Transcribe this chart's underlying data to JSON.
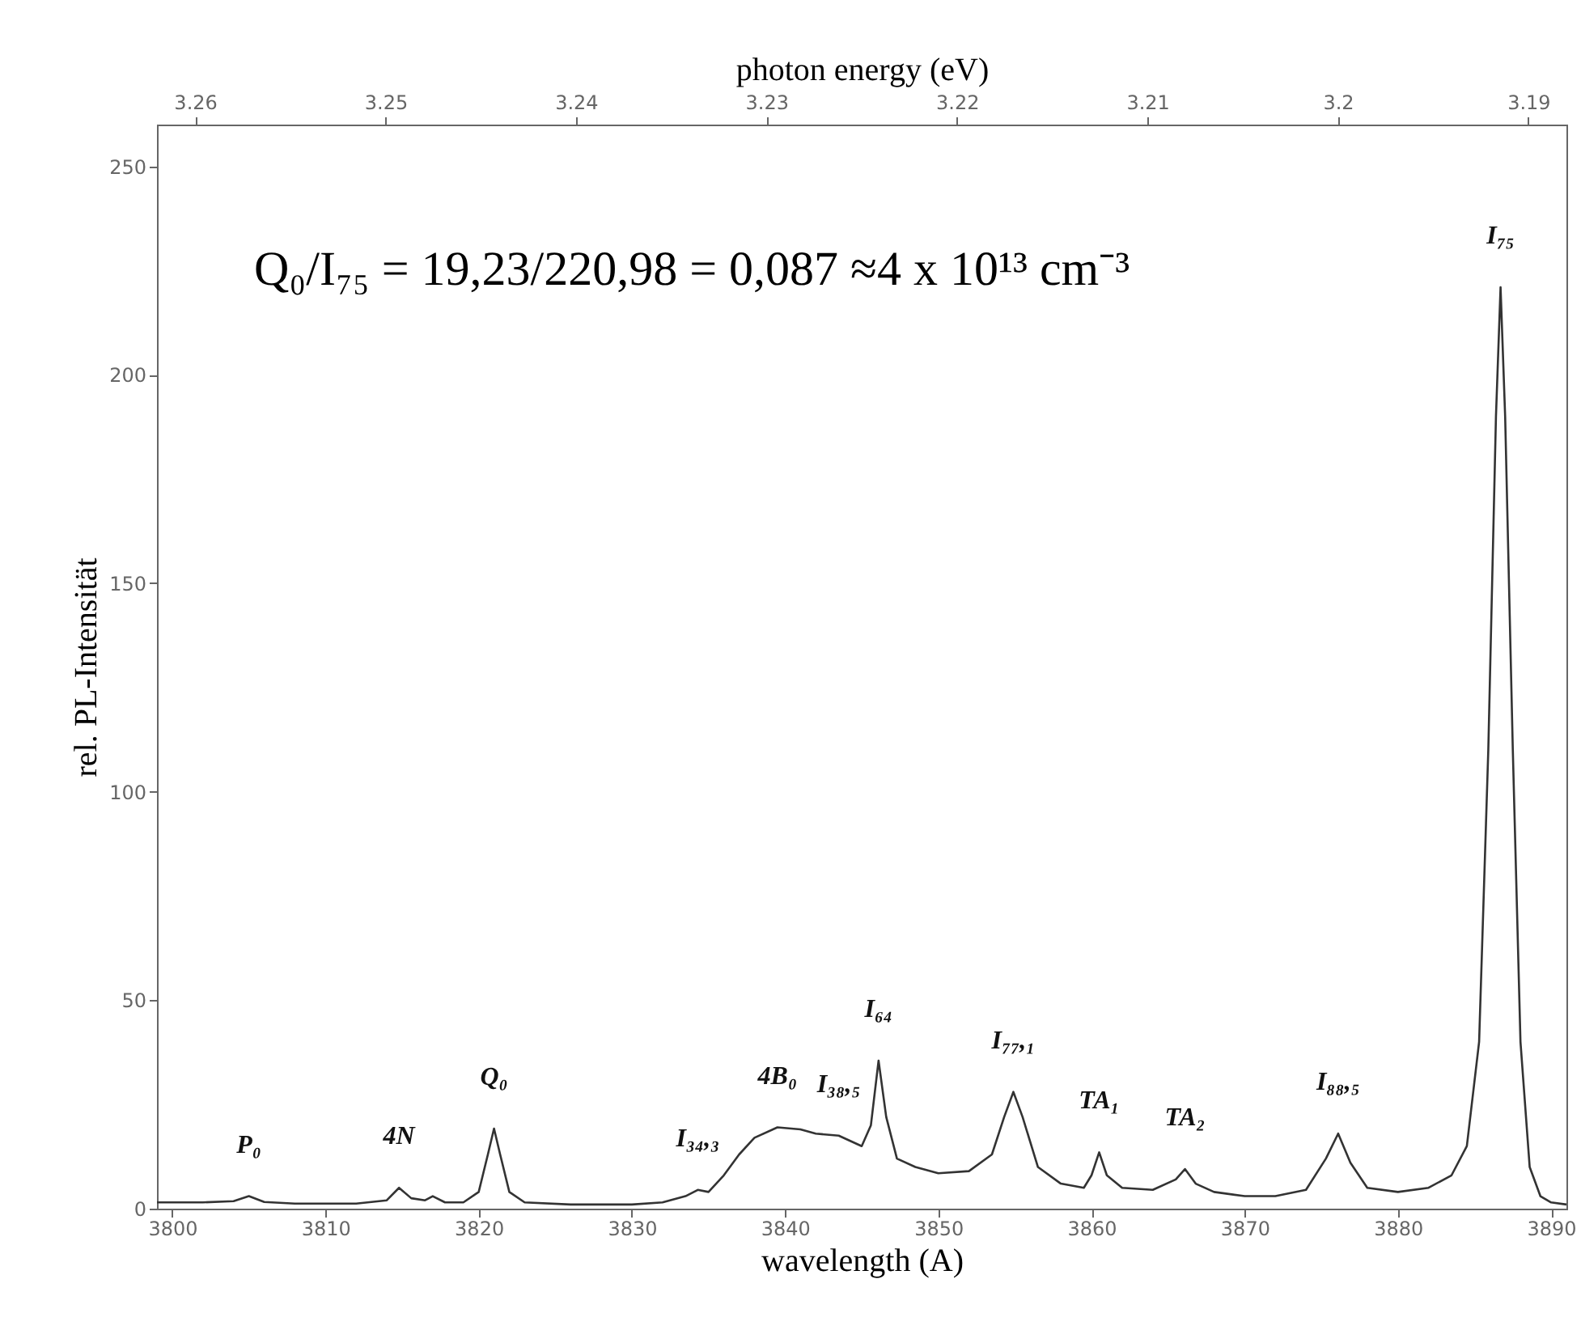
{
  "chart_data": {
    "type": "line",
    "xlabel": "wavelength (A)",
    "ylabel": "rel. PL-Intensität",
    "x2label": "photon energy (eV)",
    "xlim": [
      3799,
      3891
    ],
    "xticks": [
      3800,
      3810,
      3820,
      3830,
      3840,
      3850,
      3860,
      3870,
      3880,
      3890
    ],
    "ylim": [
      0,
      260
    ],
    "yticks": [
      0,
      50,
      100,
      150,
      200,
      250
    ],
    "x2lim": [
      3.262,
      3.188
    ],
    "x2ticks": [
      3.26,
      3.25,
      3.24,
      3.23,
      3.22,
      3.21,
      3.2,
      3.19
    ],
    "grid": false,
    "marker": "none",
    "line_style": "solid",
    "x": [
      3799,
      3802,
      3804,
      3805,
      3806,
      3808,
      3812,
      3814,
      3814.8,
      3815.6,
      3816.5,
      3817,
      3817.8,
      3819,
      3820,
      3820.6,
      3821,
      3821.4,
      3822,
      3823,
      3826,
      3830,
      3832,
      3833.5,
      3834.3,
      3835,
      3836,
      3837,
      3838,
      3839.5,
      3841,
      3842,
      3843.5,
      3845,
      3845.6,
      3846.1,
      3846.6,
      3847.3,
      3848.5,
      3850,
      3852,
      3853.5,
      3854.3,
      3854.9,
      3855.5,
      3856.5,
      3858,
      3859.5,
      3860,
      3860.5,
      3861,
      3862,
      3864,
      3865.5,
      3866.1,
      3866.8,
      3868,
      3870,
      3872,
      3874,
      3875.3,
      3876.1,
      3876.9,
      3878,
      3880,
      3882,
      3883.5,
      3884.5,
      3885.3,
      3885.9,
      3886.4,
      3886.7,
      3887,
      3887.5,
      3888,
      3888.6,
      3889.3,
      3890,
      3891
    ],
    "series": [
      {
        "color": "#333333",
        "values": [
          1.5,
          1.5,
          1.8,
          3,
          1.6,
          1.2,
          1.2,
          2,
          5,
          2.5,
          2,
          3,
          1.5,
          1.5,
          4,
          13,
          19.2,
          13,
          4,
          1.5,
          1,
          1,
          1.5,
          3,
          4.5,
          4,
          8,
          13,
          17,
          19.5,
          19,
          18,
          17.5,
          15,
          20,
          35.5,
          22,
          12,
          10,
          8.5,
          9,
          13,
          22,
          28,
          22,
          10,
          6,
          5,
          8,
          13.5,
          8,
          5,
          4.5,
          7,
          9.5,
          6,
          4,
          3,
          3,
          4.5,
          12,
          18,
          11,
          5,
          4,
          5,
          8,
          15,
          40,
          110,
          190,
          221,
          190,
          110,
          40,
          10,
          3,
          1.5,
          1
        ]
      }
    ],
    "annotations": [
      "Q₀/I₇₅ = 19,23/220,98 = 0,087    ≈4 x 10¹³ cm⁻³",
      {
        "text": "P₀",
        "x": 3805,
        "y": 3
      },
      {
        "text": "4N",
        "x": 3814.8,
        "y": 5
      },
      {
        "text": "Q₀",
        "x": 3821,
        "y": 19.2
      },
      {
        "text": "I₃₄,₃",
        "x": 3834.3,
        "y": 4.5
      },
      {
        "text": "4B₀",
        "x": 3839.5,
        "y": 19.5
      },
      {
        "text": "I₃₈,₅",
        "x": 3843.5,
        "y": 17.5
      },
      {
        "text": "I₆₄",
        "x": 3846.1,
        "y": 35.5
      },
      {
        "text": "I₇₇,₁",
        "x": 3854.9,
        "y": 28
      },
      {
        "text": "TA₁",
        "x": 3860.5,
        "y": 13.5
      },
      {
        "text": "TA₂",
        "x": 3866.1,
        "y": 9.5
      },
      {
        "text": "I₈₈,₅",
        "x": 3876.1,
        "y": 18
      },
      {
        "text": "I₇₅",
        "x": 3886.7,
        "y": 221
      }
    ]
  }
}
